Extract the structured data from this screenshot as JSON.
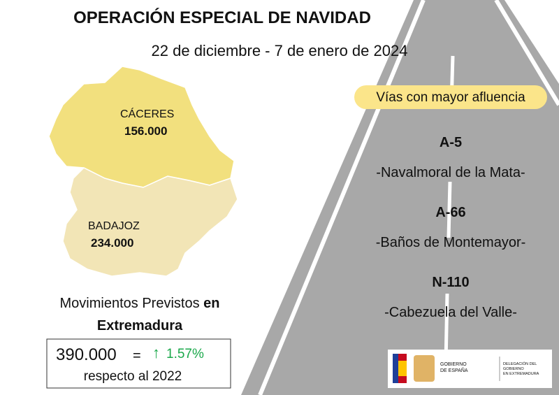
{
  "header": {
    "title": "OPERACIÓN ESPECIAL DE NAVIDAD",
    "subtitle": "22 de diciembre - 7 de enero de 2024"
  },
  "map": {
    "regions": [
      {
        "name": "CÁCERES",
        "value": "156.000"
      },
      {
        "name": "BADAJOZ",
        "value": "234.000"
      }
    ]
  },
  "summary": {
    "line1": "Movimientos Previstos",
    "line1_bold": "en",
    "line2": "Extremadura",
    "total": "390.000",
    "equals": "=",
    "arrow": "↑",
    "change": "1.57%",
    "note": "respecto al 2022"
  },
  "roads": {
    "heading": "Vías con mayor afluencia",
    "items": [
      {
        "road": "A-5",
        "place": "-Navalmoral de la Mata-"
      },
      {
        "road": "A-66",
        "place": "-Baños de Montemayor-"
      },
      {
        "road": "N-110",
        "place": "-Cabezuela del Valle-"
      }
    ]
  },
  "logo": {
    "gov": [
      "GOBIERNO",
      "DE ESPAÑA"
    ],
    "delegation": [
      "DELEGACIÓN DEL",
      "GOBIERNO",
      "EN EXTREMADURA"
    ]
  }
}
